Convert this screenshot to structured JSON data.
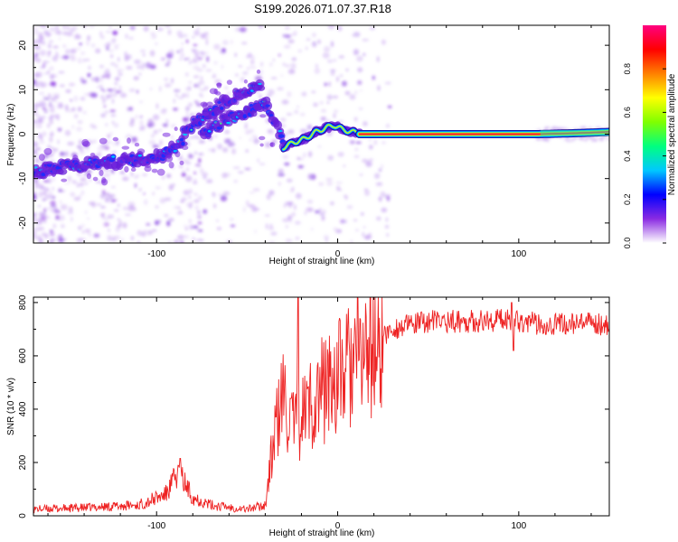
{
  "title": "S199.2026.071.07.37.R18",
  "colors": {
    "frame": "#000000",
    "snr_line": "#ee2222",
    "track_edge": "#1a0a8a",
    "track_core": "#e81248"
  },
  "chart_data": [
    {
      "type": "heatmap",
      "name": "spectrogram",
      "xlabel": "Height of straight line (km)",
      "ylabel": "Frequency (Hz)",
      "xlim": [
        -168,
        150
      ],
      "ylim": [
        -24.5,
        24.5
      ],
      "xticks": [
        -100,
        0,
        100
      ],
      "xtick_labels": [
        "-100",
        "0",
        "100"
      ],
      "yticks": [
        -20,
        -10,
        0,
        10,
        20
      ],
      "ytick_labels": [
        "-20",
        "-10",
        "0",
        "10",
        "20"
      ],
      "description_series": [
        {
          "name": "left branch ridge",
          "x": [
            -168,
            -150,
            -130,
            -110,
            -95,
            -85
          ],
          "y": [
            -8.5,
            -7.2,
            -6.3,
            -5.8,
            -4.5,
            -1.5
          ]
        },
        {
          "name": "rising branch",
          "x": [
            -85,
            -75,
            -65,
            -55,
            -48,
            -42
          ],
          "y": [
            0.5,
            3.5,
            6.5,
            9.0,
            10.5,
            11.5
          ]
        },
        {
          "name": "lower rising branch",
          "x": [
            -75,
            -65,
            -55,
            -45,
            -38
          ],
          "y": [
            0,
            2.5,
            4.5,
            5.8,
            6.8
          ]
        },
        {
          "name": "descending link",
          "x": [
            -38,
            -34,
            -30
          ],
          "y": [
            5.5,
            1.5,
            -1.0
          ]
        },
        {
          "name": "meander",
          "x": [
            -30,
            -25,
            -18,
            -12,
            -6,
            -2,
            3,
            8,
            12
          ],
          "y": [
            -3.0,
            -2.0,
            -1.0,
            0.5,
            1.5,
            2.0,
            1.0,
            0.5,
            0.2
          ]
        },
        {
          "name": "steady tone",
          "x": [
            12,
            40,
            80,
            110,
            130,
            150
          ],
          "y": [
            0,
            0,
            0,
            0,
            0.2,
            0.5
          ]
        }
      ]
    },
    {
      "type": "line",
      "name": "snr",
      "xlabel": "Height of straight line (km)",
      "ylabel": "SNR (10 * v/v)",
      "xlim": [
        -168,
        150
      ],
      "ylim": [
        0,
        820
      ],
      "xticks": [
        -100,
        0,
        100
      ],
      "xtick_labels": [
        "-100",
        "0",
        "100"
      ],
      "yticks": [
        0,
        200,
        400,
        600,
        800
      ],
      "ytick_labels": [
        "0",
        "200",
        "400",
        "600",
        "800"
      ],
      "envelope_x": [
        -168,
        -140,
        -110,
        -95,
        -88,
        -80,
        -70,
        -50,
        -40,
        -35,
        -30,
        -25,
        -20,
        -15,
        -10,
        -5,
        0,
        10,
        20,
        30,
        50,
        80,
        95,
        110,
        150
      ],
      "envelope_y": [
        25,
        30,
        40,
        80,
        160,
        70,
        40,
        25,
        40,
        300,
        450,
        330,
        380,
        420,
        460,
        500,
        520,
        580,
        640,
        700,
        730,
        730,
        740,
        720,
        720
      ],
      "spikes": [
        {
          "x": -87,
          "y": 215
        },
        {
          "x": -22,
          "y": 820
        },
        {
          "x": 96,
          "y": 800
        },
        {
          "x": 97,
          "y": 620
        }
      ]
    }
  ],
  "colorbar": {
    "label": "Normalized spectral amplitude",
    "range": [
      0,
      1
    ],
    "ticks": [
      0.0,
      0.2,
      0.4,
      0.6,
      0.8
    ],
    "tick_labels": [
      "0.0",
      "0.2",
      "0.4",
      "0.6",
      "0.8"
    ],
    "colormap": [
      "#ffffff",
      "#8a2be2",
      "#0000ff",
      "#00c8ff",
      "#00ff80",
      "#80ff00",
      "#ffff00",
      "#ff8000",
      "#ff0000",
      "#ff0080"
    ]
  }
}
